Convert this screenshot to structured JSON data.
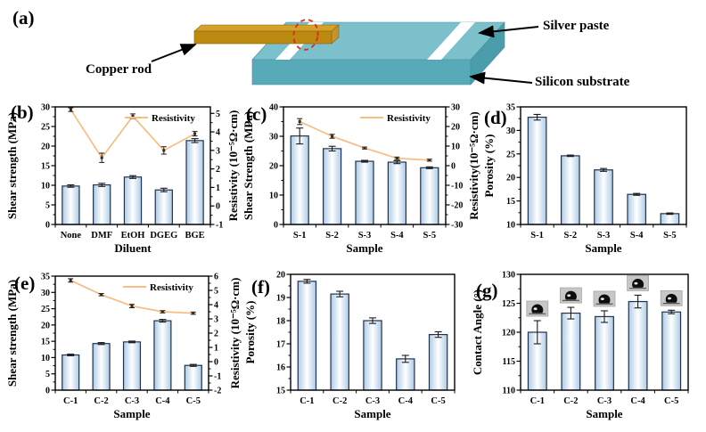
{
  "figure": {
    "panel_labels": {
      "a": "(a)",
      "b": "(b)",
      "c": "(c)",
      "d": "(d)",
      "e": "(e)",
      "f": "(f)",
      "g": "(g)"
    }
  },
  "diagram": {
    "labels": {
      "copper_rod": "Copper rod",
      "silver_paste": "Silver paste",
      "silicon_substrate": "Silicon substrate"
    },
    "colors": {
      "substrate_top": "#7cc0cb",
      "substrate_front": "#58aab8",
      "substrate_side": "#4c9dac",
      "substrate_edge": "#42909f",
      "rod_top": "#d3a22b",
      "rod_front": "#bc8a10",
      "rod_end": "#c2932e",
      "rod_edge": "#8a6508",
      "silver_paste": "#ffffff",
      "highlight_ellipse": "#e02828",
      "arrow": "#000000"
    }
  },
  "chart_colors": {
    "bar_edge": "#aecbe6",
    "bar_center": "#ffffff",
    "bar_border": "#1f3350",
    "line": "#f9bd81",
    "marker": "#3a2a14",
    "error": "#1a1a1a",
    "axis": "#000000",
    "inset_bg": "#c7c7c7",
    "inset_border": "#a6a6a6",
    "droplet": "#0d0d0d"
  },
  "chart_data": [
    {
      "id": "b",
      "type": "bar",
      "categories": [
        "None",
        "DMF",
        "EtOH",
        "DGEG",
        "BGE"
      ],
      "bars": {
        "values": [
          9.8,
          10.1,
          12.1,
          8.8,
          21.4
        ],
        "errors": [
          0.3,
          0.4,
          0.35,
          0.45,
          0.5
        ]
      },
      "line": {
        "values": [
          5.2,
          2.6,
          4.85,
          3.0,
          3.9
        ],
        "errors": [
          0.1,
          0.25,
          0.12,
          0.2,
          0.12
        ]
      },
      "left_axis": {
        "label": "Shear strength (MPa)",
        "min": 0,
        "max": 30,
        "ticks": [
          0,
          5,
          10,
          15,
          20,
          25,
          30
        ]
      },
      "right_axis": {
        "label": "Resistivity (10⁻⁵Ω·cm)",
        "min": -1,
        "max": 5.35,
        "ticks": [
          -1,
          0,
          1,
          2,
          3,
          4,
          5
        ]
      },
      "xlabel": "Diluent",
      "legend": "Resistivity"
    },
    {
      "id": "c",
      "type": "bar",
      "categories": [
        "S-1",
        "S-2",
        "S-3",
        "S-4",
        "S-5"
      ],
      "bars": {
        "values": [
          30.1,
          25.8,
          21.5,
          21.2,
          19.3
        ],
        "errors": [
          2.7,
          0.8,
          0.3,
          0.5,
          0.3
        ]
      },
      "line": {
        "values": [
          22.5,
          15,
          9,
          3.8,
          2.8
        ],
        "errors": [
          1.5,
          1.0,
          0.5,
          0.6,
          0.5
        ]
      },
      "left_axis": {
        "label": "Shear Strength (MPa)",
        "min": 0,
        "max": 40,
        "ticks": [
          0,
          10,
          20,
          30,
          40
        ]
      },
      "right_axis": {
        "label": "Resistivity(10⁻⁵Ω·cm)",
        "min": -30,
        "max": 30,
        "ticks": [
          -30,
          -20,
          -10,
          0,
          10,
          20,
          30
        ]
      },
      "xlabel": "Sample",
      "legend": "Resistivity"
    },
    {
      "id": "d",
      "type": "bar",
      "categories": [
        "S-1",
        "S-2",
        "S-3",
        "S-4",
        "S-5"
      ],
      "bars": {
        "values": [
          32.8,
          24.6,
          21.6,
          16.4,
          12.3
        ],
        "errors": [
          0.6,
          0.15,
          0.3,
          0.2,
          0.15
        ]
      },
      "left_axis": {
        "label": "Porosity (%)",
        "min": 10,
        "max": 35,
        "ticks": [
          10,
          15,
          20,
          25,
          30,
          35
        ]
      },
      "xlabel": "Sample"
    },
    {
      "id": "e",
      "type": "bar",
      "categories": [
        "C-1",
        "C-2",
        "C-3",
        "C-4",
        "C-5"
      ],
      "bars": {
        "values": [
          10.8,
          14.3,
          14.8,
          21.3,
          7.6
        ],
        "errors": [
          0.25,
          0.3,
          0.25,
          0.4,
          0.3
        ]
      },
      "line": {
        "values": [
          5.7,
          4.7,
          3.9,
          3.5,
          3.4
        ],
        "errors": [
          0.12,
          0.08,
          0.12,
          0.08,
          0.08
        ]
      },
      "left_axis": {
        "label": "Shear strength (MPa)",
        "min": 0,
        "max": 35,
        "ticks": [
          0,
          5,
          10,
          15,
          20,
          25,
          30,
          35
        ]
      },
      "right_axis": {
        "label": "Resistivity (10⁻⁵Ω·cm)",
        "min": -2,
        "max": 6,
        "ticks": [
          -2,
          -1,
          0,
          1,
          2,
          3,
          4,
          5,
          6
        ]
      },
      "xlabel": "Sample",
      "legend": "Resistivity"
    },
    {
      "id": "f",
      "type": "bar",
      "categories": [
        "C-1",
        "C-2",
        "C-3",
        "C-4",
        "C-5"
      ],
      "bars": {
        "values": [
          19.7,
          19.15,
          18.0,
          16.35,
          17.4
        ],
        "errors": [
          0.08,
          0.12,
          0.12,
          0.15,
          0.12
        ]
      },
      "left_axis": {
        "label": "Porosity (%)",
        "min": 15,
        "max": 20,
        "ticks": [
          15,
          16,
          17,
          18,
          19,
          20
        ]
      },
      "xlabel": "Sample"
    },
    {
      "id": "g",
      "type": "bar",
      "categories": [
        "C-1",
        "C-2",
        "C-3",
        "C-4",
        "C-5"
      ],
      "bars": {
        "values": [
          120.0,
          123.3,
          122.7,
          125.3,
          123.5
        ],
        "errors": [
          2.0,
          1.0,
          1.0,
          1.1,
          0.3
        ]
      },
      "left_axis": {
        "label": "Contact Angle (°)",
        "min": 110,
        "max": 130,
        "ticks": [
          110,
          115,
          120,
          125,
          130
        ]
      },
      "xlabel": "Sample",
      "insets": "droplet"
    }
  ]
}
